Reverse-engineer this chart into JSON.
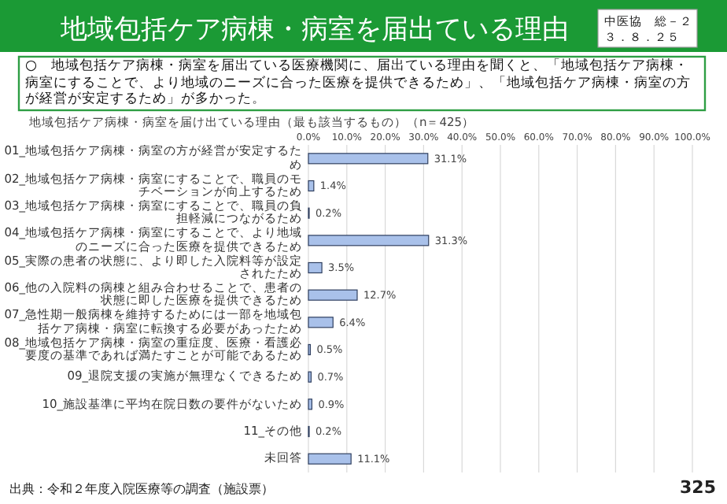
{
  "chart_data": {
    "type": "bar",
    "orientation": "horizontal",
    "title": "地域包括ケア病棟・病室を届出ている理由",
    "subtitle": "○　地域包括ケア病棟・病室を届出ている医療機関に、届出ている理由を聞くと、「地域包括ケア病棟・病室にすることで、より地域のニーズに合った医療を提供できるため」、「地域包括ケア病棟・病室の方が経営が安定するため」が多かった。",
    "annotations": [
      "地域包括ケア病棟・病室を届け出ている理由（最も該当するもの）（n＝425）",
      "中医協　総－２",
      "３．８．２５",
      "出典：令和２年度入院医療等の調査（施設票）",
      "325"
    ],
    "categories": [
      "01_地域包括ケア病棟・病室の方が経営が安定するため",
      "02_地域包括ケア病棟・病室にすることで、職員のモチベーションが向上するため",
      "03_地域包括ケア病棟・病室にすることで、職員の負担軽減につながるため",
      "04_地域包括ケア病棟・病室にすることで、より地域のニーズに合った医療を提供できるため",
      "05_実際の患者の状態に、より即した入院料等が設定されたため",
      "06_他の入院料の病棟と組み合わせることで、患者の状態に即した医療を提供できるため",
      "07_急性期一般病棟を維持するためには一部を地域包括ケア病棟・病室に転換する必要があったため",
      "08_地域包括ケア病棟・病室の重症度、医療・看護必要度の基準であれば満たすことが可能であるため",
      "09_退院支援の実施が無理なくできるため",
      "10_施設基準に平均在院日数の要件がないため",
      "11_その他",
      "未回答"
    ],
    "values": [
      31.1,
      1.4,
      0.2,
      31.3,
      3.5,
      12.7,
      6.4,
      0.5,
      0.7,
      0.9,
      0.2,
      11.1
    ],
    "value_labels": [
      "31.1%",
      "1.4%",
      "0.2%",
      "31.3%",
      "3.5%",
      "12.7%",
      "6.4%",
      "0.5%",
      "0.7%",
      "0.9%",
      "0.2%",
      "11.1%"
    ],
    "color": "#a9c1ea",
    "xlim": [
      0,
      100
    ],
    "xticks": [
      {
        "value": 0,
        "label": "0.0%"
      },
      {
        "value": 10,
        "label": "10.0%"
      },
      {
        "value": 20,
        "label": "20.0%"
      },
      {
        "value": 30,
        "label": "30.0%"
      },
      {
        "value": 40,
        "label": "40.0%"
      },
      {
        "value": 50,
        "label": "50.0%"
      },
      {
        "value": 60,
        "label": "60.0%"
      },
      {
        "value": 70,
        "label": "70.0%"
      },
      {
        "value": 80,
        "label": "80.0%"
      },
      {
        "value": 90,
        "label": "90.0%"
      },
      {
        "value": 100,
        "label": "100.0%"
      }
    ],
    "grid": "x"
  }
}
